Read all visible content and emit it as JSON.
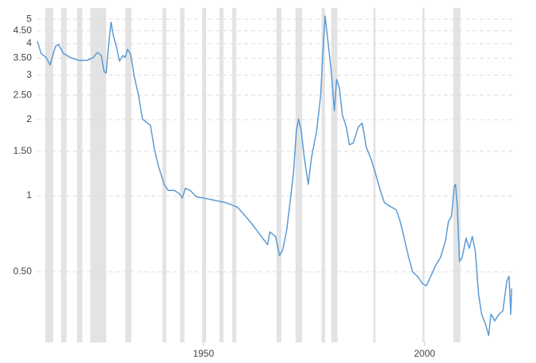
{
  "chart_data": {
    "type": "line",
    "log_scale": true,
    "grid": true,
    "color": "#5b9bd5",
    "shade_color": "#e3e3e3",
    "xlim": [
      1912.4,
      2020
    ],
    "xticks": [
      1950,
      2000
    ],
    "ylim": [
      0.263,
      5.34
    ],
    "yticks": [
      5,
      {
        "value": 4.5,
        "label": "4.50"
      },
      4,
      {
        "value": 3.5,
        "label": "3.50"
      },
      3,
      {
        "value": 2.5,
        "label": "2.50"
      },
      2,
      {
        "value": 1.5,
        "label": "1.50"
      },
      1,
      {
        "value": 0.5,
        "label": "0.50"
      }
    ],
    "recession_periods": [
      [
        1914.2,
        1916.0
      ],
      [
        1917.8,
        1919.0
      ],
      [
        1921.4,
        1922.6
      ],
      [
        1924.4,
        1928.0
      ],
      [
        1932.3,
        1933.7
      ],
      [
        1940.7,
        1941.6
      ],
      [
        1944.7,
        1945.7
      ],
      [
        1949.7,
        1950.6
      ],
      [
        1953.6,
        1954.5
      ],
      [
        1956.5,
        1957.4
      ],
      [
        1966.5,
        1967.6
      ],
      [
        1970.8,
        1972.3
      ],
      [
        1976.7,
        1977.5
      ],
      [
        1978.9,
        1980.3
      ],
      [
        1988.4,
        1988.9
      ],
      [
        1999.5,
        2000.0
      ],
      [
        2006.5,
        2008.1
      ]
    ],
    "x": [
      1912.4,
      1913.3,
      1914.4,
      1915.3,
      1916.5,
      1917.2,
      1918.3,
      1920.1,
      1921.9,
      1923.7,
      1925.1,
      1926.0,
      1926.9,
      1927.5,
      1928.0,
      1928.5,
      1929.1,
      1929.6,
      1930.3,
      1931.0,
      1931.8,
      1932.3,
      1932.8,
      1933.5,
      1934.4,
      1935.3,
      1936.2,
      1937.3,
      1938.0,
      1938.9,
      1939.8,
      1941.1,
      1942.0,
      1943.4,
      1944.5,
      1945.2,
      1945.9,
      1947.0,
      1948.4,
      1950.0,
      1952.4,
      1955.0,
      1957.7,
      1959.5,
      1961.3,
      1963.1,
      1964.5,
      1965.0,
      1966.3,
      1967.2,
      1967.9,
      1968.8,
      1969.7,
      1970.4,
      1971.0,
      1971.5,
      1972.1,
      1972.8,
      1973.7,
      1974.4,
      1975.6,
      1976.5,
      1977.1,
      1977.5,
      1978.0,
      1978.9,
      1979.6,
      1980.1,
      1980.7,
      1981.4,
      1982.3,
      1983.0,
      1983.9,
      1985.0,
      1985.9,
      1986.8,
      1987.8,
      1988.7,
      1990.0,
      1990.9,
      1992.1,
      1993.6,
      1994.5,
      1995.4,
      1996.3,
      1997.3,
      1998.4,
      1999.5,
      2000.4,
      2001.4,
      2002.5,
      2003.6,
      2004.7,
      2005.4,
      2006.1,
      2006.7,
      2007.0,
      2007.4,
      2007.9,
      2008.5,
      2009.4,
      2010.1,
      2010.8,
      2011.5,
      2012.2,
      2012.9,
      2013.8,
      2014.5,
      2015.0,
      2015.9,
      2016.8,
      2017.7,
      2018.6,
      2019.1,
      2019.5,
      2019.7
    ],
    "values": [
      4.09,
      3.65,
      3.53,
      3.29,
      3.9,
      3.97,
      3.66,
      3.51,
      3.43,
      3.43,
      3.53,
      3.69,
      3.59,
      3.1,
      3.06,
      3.9,
      4.86,
      4.3,
      3.9,
      3.41,
      3.59,
      3.53,
      3.8,
      3.64,
      2.93,
      2.5,
      2.01,
      1.94,
      1.9,
      1.53,
      1.31,
      1.11,
      1.05,
      1.05,
      1.02,
      0.98,
      1.07,
      1.05,
      0.99,
      0.98,
      0.96,
      0.94,
      0.9,
      0.83,
      0.76,
      0.69,
      0.64,
      0.72,
      0.69,
      0.58,
      0.61,
      0.73,
      0.98,
      1.26,
      1.81,
      2.01,
      1.81,
      1.41,
      1.11,
      1.41,
      1.81,
      2.5,
      4.0,
      5.14,
      4.3,
      3.1,
      2.17,
      2.89,
      2.69,
      2.09,
      1.87,
      1.59,
      1.62,
      1.87,
      1.94,
      1.56,
      1.41,
      1.26,
      1.05,
      0.94,
      0.91,
      0.88,
      0.79,
      0.68,
      0.58,
      0.5,
      0.48,
      0.45,
      0.44,
      0.48,
      0.53,
      0.57,
      0.66,
      0.79,
      0.83,
      1.09,
      1.11,
      0.91,
      0.55,
      0.57,
      0.68,
      0.62,
      0.69,
      0.6,
      0.41,
      0.34,
      0.31,
      0.28,
      0.34,
      0.32,
      0.34,
      0.35,
      0.46,
      0.48,
      0.34,
      0.43
    ]
  }
}
